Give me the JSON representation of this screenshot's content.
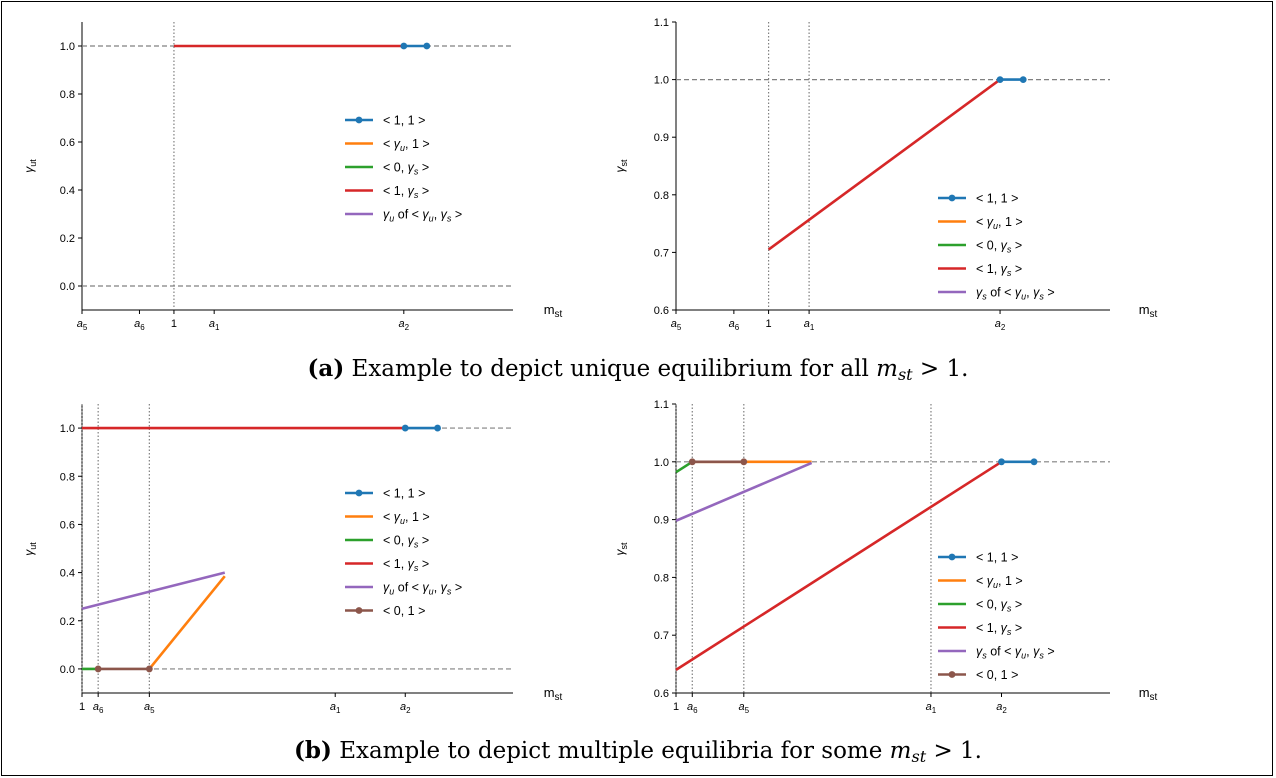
{
  "captions": {
    "a": {
      "tag": "(a)",
      "text": "Example to depict unique equilibrium for all",
      "var": "m",
      "sub": "st",
      "rel": "> 1."
    },
    "b": {
      "tag": "(b)",
      "text": "Example to depict multiple equilibria for some",
      "var": "m",
      "sub": "st",
      "rel": "> 1."
    }
  },
  "colors": {
    "blue": "#1f77b4",
    "orange": "#ff7f0e",
    "green": "#2ca02c",
    "red": "#d62728",
    "purple": "#9467bd",
    "brown": "#8c564b",
    "ref": "#808080"
  },
  "chart_data": [
    {
      "id": "a-left",
      "type": "line",
      "xlabel": "m",
      "xlabel_sub": "st",
      "ylabel": "γ",
      "ylabel_sub": "ut",
      "xlim": [
        -0.3,
        0.45
      ],
      "ylim": [
        -0.1,
        1.1
      ],
      "yticks": [
        0.0,
        0.2,
        0.4,
        0.6,
        0.8,
        1.0
      ],
      "xticks": [
        {
          "v": -0.3,
          "label": "a",
          "sub": "5"
        },
        {
          "v": -0.2,
          "label": "a",
          "sub": "6"
        },
        {
          "v": -0.14,
          "label": "1",
          "sub": ""
        },
        {
          "v": -0.07,
          "label": "a",
          "sub": "1"
        },
        {
          "v": 0.26,
          "label": "a",
          "sub": "2"
        }
      ],
      "vlines": [
        -0.14
      ],
      "hlines": [
        1.0,
        0.0
      ],
      "legend": {
        "anchor": "mid-right",
        "entries": [
          {
            "key": "blue",
            "label": "< 1, 1 >",
            "marker": true
          },
          {
            "key": "orange",
            "label": "< γu, 1 >"
          },
          {
            "key": "green",
            "label": "< 0, γs >"
          },
          {
            "key": "red",
            "label": "< 1, γs >"
          },
          {
            "key": "purple",
            "label": "γu of < γu, γs >"
          }
        ]
      },
      "series": [
        {
          "key": "red",
          "x": [
            -0.14,
            0.26
          ],
          "y": [
            1.0,
            1.0
          ]
        },
        {
          "key": "blue",
          "x": [
            0.26,
            0.3
          ],
          "y": [
            1.0,
            1.0
          ],
          "marker": true
        }
      ]
    },
    {
      "id": "a-right",
      "type": "line",
      "xlabel": "m",
      "xlabel_sub": "st",
      "ylabel": "γ",
      "ylabel_sub": "st",
      "xlim": [
        -0.3,
        0.45
      ],
      "ylim": [
        0.6,
        1.1
      ],
      "yticks": [
        0.6,
        0.7,
        0.8,
        0.9,
        1.0,
        1.1
      ],
      "xticks": [
        {
          "v": -0.3,
          "label": "a",
          "sub": "5"
        },
        {
          "v": -0.2,
          "label": "a",
          "sub": "6"
        },
        {
          "v": -0.14,
          "label": "1",
          "sub": ""
        },
        {
          "v": -0.07,
          "label": "a",
          "sub": "1"
        },
        {
          "v": 0.26,
          "label": "a",
          "sub": "2"
        }
      ],
      "vlines": [
        -0.14,
        -0.07
      ],
      "hlines": [
        1.0
      ],
      "legend": {
        "anchor": "lower-right",
        "entries": [
          {
            "key": "blue",
            "label": "< 1, 1 >",
            "marker": true
          },
          {
            "key": "orange",
            "label": "< γu, 1 >"
          },
          {
            "key": "green",
            "label": "< 0, γs >"
          },
          {
            "key": "red",
            "label": "< 1, γs >"
          },
          {
            "key": "purple",
            "label": "γs of < γu, γs >"
          }
        ]
      },
      "series": [
        {
          "key": "red",
          "x": [
            -0.14,
            0.26
          ],
          "y": [
            0.705,
            1.0
          ]
        },
        {
          "key": "blue",
          "x": [
            0.26,
            0.3
          ],
          "y": [
            1.0,
            1.0
          ],
          "marker": true
        }
      ]
    },
    {
      "id": "b-left",
      "type": "line",
      "xlabel": "m",
      "xlabel_sub": "st",
      "ylabel": "γ",
      "ylabel_sub": "ut",
      "xlim": [
        0.0,
        0.8
      ],
      "ylim": [
        -0.1,
        1.1
      ],
      "yticks": [
        0.0,
        0.2,
        0.4,
        0.6,
        0.8,
        1.0
      ],
      "xticks": [
        {
          "v": 0.0,
          "label": "1",
          "sub": ""
        },
        {
          "v": 0.03,
          "label": "a",
          "sub": "6"
        },
        {
          "v": 0.125,
          "label": "a",
          "sub": "5"
        },
        {
          "v": 0.47,
          "label": "a",
          "sub": "1"
        },
        {
          "v": 0.6,
          "label": "a",
          "sub": "2"
        }
      ],
      "vlines": [
        0.0,
        0.03,
        0.125
      ],
      "hlines": [
        1.0,
        0.0
      ],
      "legend": {
        "anchor": "mid-right",
        "entries": [
          {
            "key": "blue",
            "label": "< 1, 1 >",
            "marker": true
          },
          {
            "key": "orange",
            "label": "< γu, 1 >"
          },
          {
            "key": "green",
            "label": "< 0, γs >"
          },
          {
            "key": "red",
            "label": "< 1, γs >"
          },
          {
            "key": "purple",
            "label": "γu of < γu, γs >"
          },
          {
            "key": "brown",
            "label": "< 0, 1 >",
            "marker": true
          }
        ]
      },
      "series": [
        {
          "key": "red",
          "x": [
            0.0,
            0.6
          ],
          "y": [
            1.0,
            1.0
          ]
        },
        {
          "key": "blue",
          "x": [
            0.6,
            0.66
          ],
          "y": [
            1.0,
            1.0
          ],
          "marker": true
        },
        {
          "key": "green",
          "x": [
            0.0,
            0.03
          ],
          "y": [
            0.0,
            0.0
          ]
        },
        {
          "key": "orange",
          "x": [
            0.125,
            0.265
          ],
          "y": [
            0.0,
            0.385
          ]
        },
        {
          "key": "purple",
          "x": [
            0.0,
            0.265
          ],
          "y": [
            0.25,
            0.4
          ]
        },
        {
          "key": "brown",
          "x": [
            0.03,
            0.125
          ],
          "y": [
            0.0,
            0.0
          ],
          "marker": true
        }
      ]
    },
    {
      "id": "b-right",
      "type": "line",
      "xlabel": "m",
      "xlabel_sub": "st",
      "ylabel": "γ",
      "ylabel_sub": "st",
      "xlim": [
        0.0,
        0.8
      ],
      "ylim": [
        0.6,
        1.1
      ],
      "yticks": [
        0.6,
        0.7,
        0.8,
        0.9,
        1.0,
        1.1
      ],
      "xticks": [
        {
          "v": 0.0,
          "label": "1",
          "sub": ""
        },
        {
          "v": 0.03,
          "label": "a",
          "sub": "6"
        },
        {
          "v": 0.125,
          "label": "a",
          "sub": "5"
        },
        {
          "v": 0.47,
          "label": "a",
          "sub": "1"
        },
        {
          "v": 0.6,
          "label": "a",
          "sub": "2"
        }
      ],
      "vlines": [
        0.0,
        0.03,
        0.125,
        0.47
      ],
      "hlines": [
        1.0
      ],
      "legend": {
        "anchor": "lower-right",
        "entries": [
          {
            "key": "blue",
            "label": "< 1, 1 >",
            "marker": true
          },
          {
            "key": "orange",
            "label": "< γu, 1 >"
          },
          {
            "key": "green",
            "label": "< 0, γs >"
          },
          {
            "key": "red",
            "label": "< 1, γs >"
          },
          {
            "key": "purple",
            "label": "γs of < γu, γs >"
          },
          {
            "key": "brown",
            "label": "< 0, 1 >",
            "marker": true
          }
        ]
      },
      "series": [
        {
          "key": "red",
          "x": [
            0.0,
            0.6
          ],
          "y": [
            0.64,
            1.0
          ]
        },
        {
          "key": "blue",
          "x": [
            0.6,
            0.66
          ],
          "y": [
            1.0,
            1.0
          ],
          "marker": true
        },
        {
          "key": "green",
          "x": [
            0.0,
            0.03
          ],
          "y": [
            0.982,
            1.0
          ]
        },
        {
          "key": "orange",
          "x": [
            0.03,
            0.25
          ],
          "y": [
            1.0,
            1.0
          ]
        },
        {
          "key": "purple",
          "x": [
            0.0,
            0.25
          ],
          "y": [
            0.898,
            0.998
          ]
        },
        {
          "key": "brown",
          "x": [
            0.03,
            0.125
          ],
          "y": [
            1.0,
            1.0
          ],
          "marker": true
        }
      ]
    }
  ]
}
